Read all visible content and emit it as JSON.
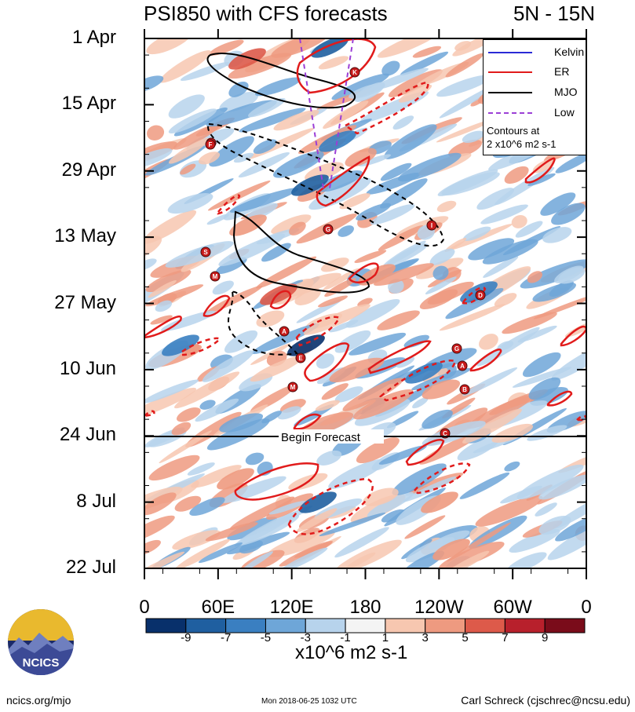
{
  "header": {
    "title": "PSI850 with CFS forecasts",
    "region": "5N - 15N"
  },
  "chart_data": {
    "type": "heatmap",
    "title": "PSI850 with CFS forecasts",
    "subtitle": "5N - 15N",
    "x_ticks": [
      "0",
      "60E",
      "120E",
      "180",
      "120W",
      "60W",
      "0"
    ],
    "y_ticks": [
      "1 Apr",
      "15 Apr",
      "29 Apr",
      "13 May",
      "27 May",
      "10 Jun",
      "24 Jun",
      "8 Jul",
      "22 Jul"
    ],
    "forecast_line_label": "Begin Forecast",
    "forecast_start": "24 Jun",
    "colorbar": {
      "unit": "x10^6 m2 s-1",
      "ticks": [
        "-9",
        "-7",
        "-5",
        "-3",
        "-1",
        "1",
        "3",
        "5",
        "7",
        "9"
      ],
      "colors": [
        "#08306b",
        "#1f5fa0",
        "#3a7fc1",
        "#6ea6d8",
        "#b7d3ec",
        "#f4f4f4",
        "#f7c7b0",
        "#ee9a80",
        "#dd5a4a",
        "#b8202c",
        "#7a0c1a"
      ]
    },
    "legend": [
      {
        "name": "Kelvin",
        "color": "#2b2bd6",
        "style": "solid"
      },
      {
        "name": "ER",
        "color": "#e11b1b",
        "style": "solid"
      },
      {
        "name": "MJO",
        "color": "#000000",
        "style": "solid"
      },
      {
        "name": "Low",
        "color": "#9b3fd6",
        "style": "dashed"
      }
    ],
    "contour_note_1": "Contours at",
    "contour_note_2": "2 x10^6 m2 s-1",
    "storm_markers": [
      "K",
      "E",
      "F",
      "I",
      "G",
      "S",
      "M",
      "A",
      "E",
      "M",
      "G",
      "A",
      "B",
      "C",
      "D"
    ]
  },
  "footer": {
    "left": "ncics.org/mjo",
    "center": "Mon 2018-06-25 1032 UTC",
    "right": "Carl Schreck (cjschrec@ncsu.edu)"
  },
  "logo": {
    "text": "NCICS"
  }
}
